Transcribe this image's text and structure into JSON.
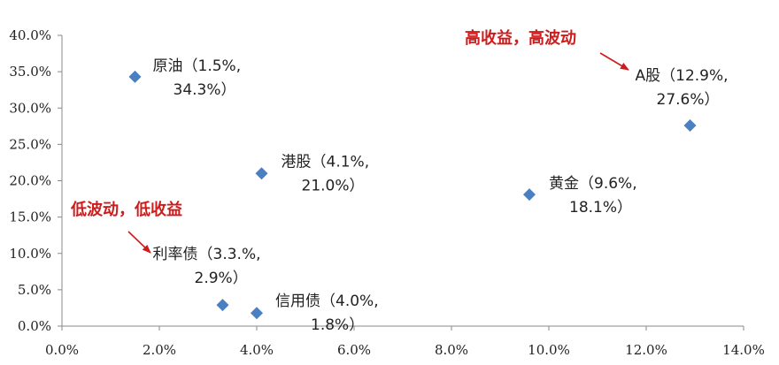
{
  "chart_data": {
    "type": "scatter",
    "xlim": [
      0,
      14
    ],
    "ylim": [
      0,
      40
    ],
    "x_ticks": [
      "0.0%",
      "2.0%",
      "4.0%",
      "6.0%",
      "8.0%",
      "10.0%",
      "12.0%",
      "14.0%"
    ],
    "y_ticks": [
      "0.0%",
      "5.0%",
      "10.0%",
      "15.0%",
      "20.0%",
      "25.0%",
      "30.0%",
      "35.0%",
      "40.0%"
    ],
    "grid": false,
    "marker_color": "#4a7fc1",
    "annotation_color": "#cc1c1c",
    "points": [
      {
        "name": "原油",
        "x": 1.5,
        "y": 34.3,
        "label_line1": "原油（1.5%,",
        "label_line2": "34.3%）"
      },
      {
        "name": "港股",
        "x": 4.1,
        "y": 21.0,
        "label_line1": "港股（4.1%,",
        "label_line2": "21.0%）"
      },
      {
        "name": "利率债",
        "x": 3.3,
        "y": 2.9,
        "label_line1": "利率债（3.3.%,",
        "label_line2": "2.9%）"
      },
      {
        "name": "信用债",
        "x": 4.0,
        "y": 1.8,
        "label_line1": "信用债（4.0%,",
        "label_line2": "1.8%）"
      },
      {
        "name": "黄金",
        "x": 9.6,
        "y": 18.1,
        "label_line1": "黄金（9.6%,",
        "label_line2": "18.1%）"
      },
      {
        "name": "A股",
        "x": 12.9,
        "y": 27.6,
        "label_line1": "A股（12.9%,",
        "label_line2": "27.6%）"
      }
    ],
    "annotations": [
      {
        "text": "高收益，高波动"
      },
      {
        "text": "低波动，低收益"
      }
    ]
  }
}
